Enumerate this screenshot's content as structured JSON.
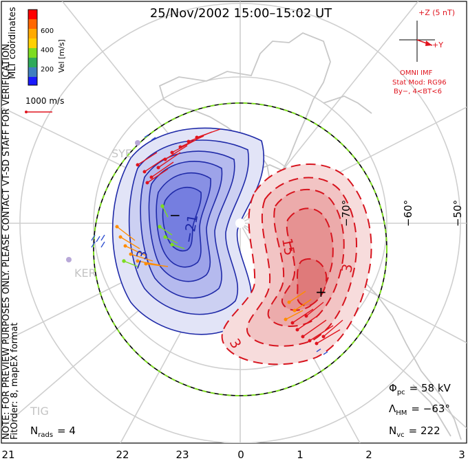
{
  "title": "25/Nov/2002 15:00–15:02 UT",
  "colorbar": {
    "label": "Vel [m/s]",
    "ticks": [
      "600",
      "400",
      "200"
    ],
    "colors": [
      "#ff0000",
      "#ff6600",
      "#ffaa00",
      "#ffd000",
      "#7ddc20",
      "#2faa5a",
      "#3f7fbf",
      "#1a1aff"
    ]
  },
  "scale_vector": {
    "label": "1000 m/s"
  },
  "coordinates_label": "MLT coordinates",
  "side_note": {
    "line1": "NOTE: FOR PREVIEW PURPOSES ONLY. PLEASE CONTACT VT-SD STAFF FOR VERIFICATION.",
    "line2": "FitOrder: 8, mapEX format"
  },
  "imf": {
    "z_label": "+Z (5 nT)",
    "y_label": "+Y",
    "source": "OMNI IMF",
    "model": "Stat Mod: RG96",
    "conditions": "By−, 4<BT<6",
    "color": "#e0141e"
  },
  "stations": [
    "SYE",
    "KER",
    "TIG"
  ],
  "contour_labels": {
    "negative": [
      "−21",
      "−3",
      "−"
    ],
    "positive": [
      "15",
      "3",
      "3",
      "+"
    ]
  },
  "latitude_labels": [
    "−70°",
    "−60°",
    "−50°"
  ],
  "mlt_labels": [
    "21",
    "22",
    "23",
    "0",
    "1",
    "2",
    "3"
  ],
  "stats": {
    "phi_sym": "Φ",
    "phi_sub": "pc",
    "phi_value": "= 58 kV",
    "lambda_sym": "Λ",
    "lambda_sub": "HM",
    "lambda_value": "= −63°",
    "nvc_sym": "N",
    "nvc_sub": "vc",
    "nvc_value": "= 222",
    "nrads_sym": "N",
    "nrads_sub": "rads",
    "nrads_value": "= 4"
  }
}
